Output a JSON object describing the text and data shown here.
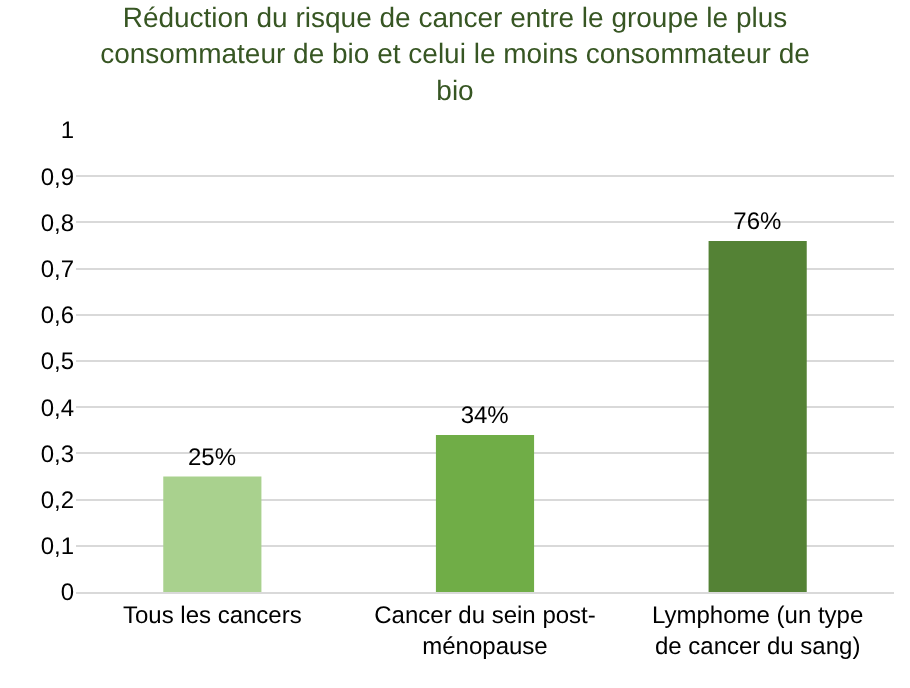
{
  "chart_data": {
    "type": "bar",
    "title": "Réduction du risque de cancer entre le groupe le plus consommateur de bio et celui le moins consommateur de bio",
    "categories": [
      "Tous les cancers",
      "Cancer du sein post-ménopause",
      "Lymphome (un type de cancer du sang)"
    ],
    "values": [
      0.25,
      0.34,
      0.76
    ],
    "colors": [
      "#a9d18e",
      "#70ad47",
      "#548235"
    ],
    "value_labels": [
      "25%",
      "34%",
      "76%"
    ],
    "ylim": [
      0,
      1
    ],
    "yticks": [
      0,
      {
        "value": 0.1,
        "label": "0,1"
      },
      {
        "value": 0.2,
        "label": "0,2"
      },
      {
        "value": 0.3,
        "label": "0,3"
      },
      {
        "value": 0.4,
        "label": "0,4"
      },
      {
        "value": 0.5,
        "label": "0,5"
      },
      {
        "value": 0.6,
        "label": "0,6"
      },
      {
        "value": 0.7,
        "label": "0,7"
      },
      {
        "value": 0.8,
        "label": "0,8"
      },
      {
        "value": 0.9,
        "label": "0,9"
      },
      1
    ],
    "grid": "y",
    "legend": false
  }
}
